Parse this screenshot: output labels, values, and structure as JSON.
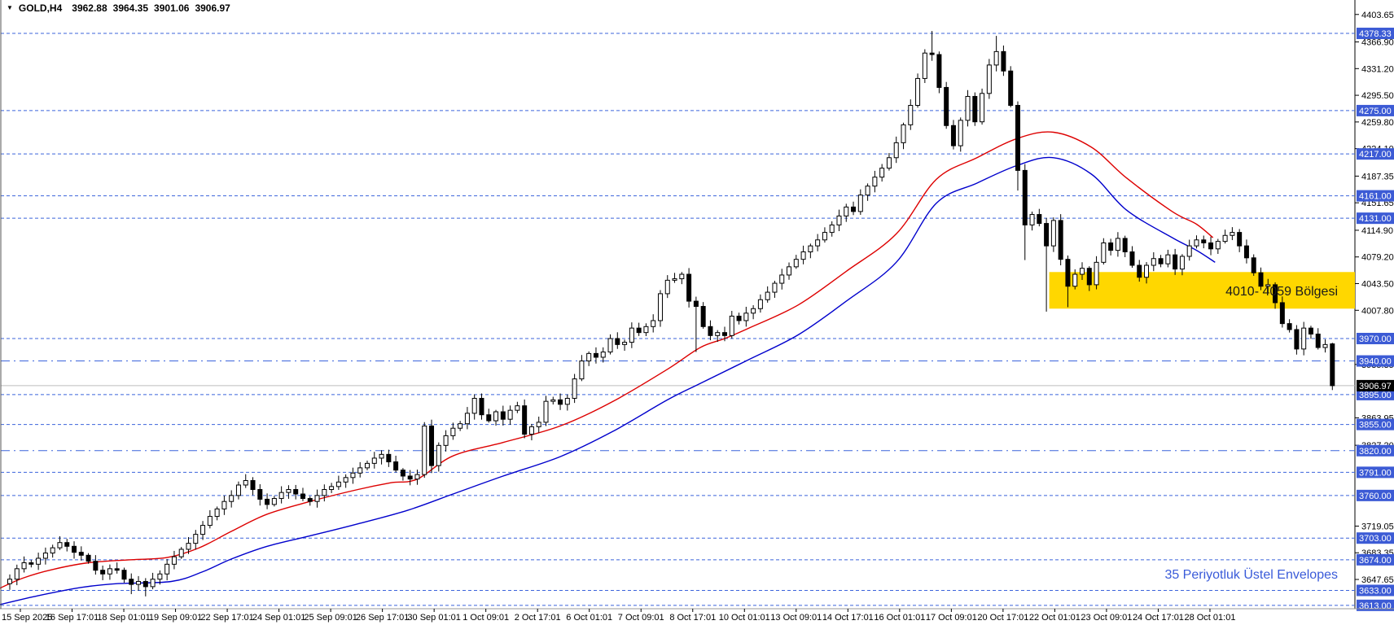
{
  "header": {
    "dropdown_icon": "▼",
    "symbol_period": "GOLD,H4",
    "open": "3962.88",
    "high": "3964.35",
    "low": "3901.06",
    "close": "3906.97"
  },
  "annotations": {
    "zone_label": "4010- 4059 Bölgesi",
    "note": "35 Periyotluk Üstel Envelopes"
  },
  "colors": {
    "level_blue": "#3B63DB",
    "label_bg": "#3C5BD5",
    "label_text": "#FFFFFF",
    "env_upper": "#DD0000",
    "env_lower": "#0000CC",
    "zone_fill": "#FFD700",
    "zone_text": "#1A1A1A",
    "note_text": "#3A5BD9",
    "current_line": "#BDBDBD",
    "current_label_bg": "#000000",
    "up_fill": "#FFFFFF",
    "down_fill": "#000000",
    "candle_stroke": "#000000",
    "axis_text": "#000000"
  },
  "chart_data": {
    "type": "candlestick",
    "title": "GOLD,H4 3962.88 3964.35 3901.06 3906.97",
    "symbol": "GOLD",
    "timeframe": "H4",
    "legend": [
      "35 Periyotluk Üstel Envelopes (upper band red, lower band blue)"
    ],
    "ylim": [
      3586.7,
      4423.0
    ],
    "grid": false,
    "price_ticks": [
      4403.65,
      4366.9,
      4331.2,
      4295.5,
      4259.8,
      4224.1,
      4187.35,
      4151.65,
      4114.9,
      4079.2,
      4043.5,
      4007.8,
      3935.35,
      3863.95,
      3827.2,
      3719.05,
      3683.35,
      3647.65
    ],
    "levels": [
      {
        "price": 4378.33,
        "style": "dash"
      },
      {
        "price": 4275.0,
        "style": "dash"
      },
      {
        "price": 4217.0,
        "style": "dash"
      },
      {
        "price": 4161.0,
        "style": "dash"
      },
      {
        "price": 4131.0,
        "style": "dash"
      },
      {
        "price": 3970.0,
        "style": "dash"
      },
      {
        "price": 3940.0,
        "style": "dashdot"
      },
      {
        "price": 3895.0,
        "style": "dash"
      },
      {
        "price": 3855.0,
        "style": "dash"
      },
      {
        "price": 3820.0,
        "style": "dashdot"
      },
      {
        "price": 3791.0,
        "style": "dash"
      },
      {
        "price": 3760.0,
        "style": "dash"
      },
      {
        "price": 3703.0,
        "style": "dash"
      },
      {
        "price": 3674.0,
        "style": "dash"
      },
      {
        "price": 3633.0,
        "style": "dash"
      },
      {
        "price": 3613.0,
        "style": "dash"
      }
    ],
    "current_price": 3906.97,
    "zone": {
      "top": 4059,
      "bottom": 4010,
      "start_index": 145.4,
      "label": "4010- 4059 Bölgesi"
    },
    "time_labels": [
      "15 Sep 2025",
      "16 Sep 17:01",
      "18 Sep 01:01",
      "19 Sep 09:01",
      "22 Sep 17:01",
      "24 Sep 01:01",
      "25 Sep 09:01",
      "26 Sep 17:01",
      "30 Sep 01:01",
      "1 Oct 09:01",
      "2 Oct 17:01",
      "6 Oct 01:01",
      "7 Oct 09:01",
      "8 Oct 17:01",
      "10 Oct 01:01",
      "13 Oct 09:01",
      "14 Oct 17:01",
      "16 Oct 01:01",
      "17 Oct 09:01",
      "20 Oct 17:01",
      "22 Oct 01:01",
      "23 Oct 09:01",
      "24 Oct 17:01",
      "28 Oct 01:01"
    ],
    "closes": [
      3648,
      3662,
      3670,
      3668,
      3676,
      3683,
      3690,
      3697,
      3692,
      3684,
      3680,
      3672,
      3660,
      3655,
      3662,
      3660,
      3648,
      3641,
      3645,
      3638,
      3648,
      3655,
      3668,
      3678,
      3688,
      3696,
      3708,
      3720,
      3732,
      3742,
      3752,
      3760,
      3774,
      3780,
      3768,
      3755,
      3748,
      3756,
      3764,
      3768,
      3762,
      3756,
      3752,
      3760,
      3768,
      3772,
      3778,
      3784,
      3790,
      3797,
      3803,
      3810,
      3815,
      3805,
      3794,
      3786,
      3782,
      3788,
      3853,
      3800,
      3827,
      3840,
      3850,
      3856,
      3870,
      3890,
      3868,
      3860,
      3872,
      3862,
      3874,
      3880,
      3842,
      3852,
      3858,
      3886,
      3888,
      3882,
      3890,
      3916,
      3940,
      3950,
      3945,
      3952,
      3970,
      3962,
      3965,
      3984,
      3978,
      3986,
      3994,
      4030,
      4048,
      4050,
      4056,
      4020,
      4013,
      3986,
      3974,
      3978,
      3974,
      4000,
      3994,
      4004,
      4010,
      4022,
      4032,
      4044,
      4055,
      4066,
      4076,
      4086,
      4094,
      4102,
      4112,
      4122,
      4134,
      4146,
      4140,
      4162,
      4174,
      4186,
      4198,
      4212,
      4232,
      4256,
      4282,
      4318,
      4352,
      4350,
      4306,
      4255,
      4228,
      4262,
      4294,
      4260,
      4298,
      4336,
      4354,
      4328,
      4282,
      4195,
      4122,
      4136,
      4124,
      4094,
      4128,
      4076,
      4040,
      4056,
      4064,
      4042,
      4072,
      4098,
      4088,
      4104,
      4086,
      4068,
      4052,
      4068,
      4077,
      4070,
      4082,
      4063,
      4080,
      4094,
      4102,
      4098,
      4090,
      4100,
      4108,
      4112,
      4094,
      4078,
      4058,
      4040,
      4042,
      4018,
      3990,
      3982,
      3956,
      3984,
      3976,
      3958,
      3962,
      3906.97
    ],
    "overrides": {
      "17": {
        "low": 3628
      },
      "19": {
        "low": 3625
      },
      "59": {
        "low": 3790
      },
      "96": {
        "low": 3952
      },
      "129": {
        "high": 4381.5
      },
      "138": {
        "high": 4375
      },
      "141": {
        "low": 4168
      },
      "142": {
        "low": 4075
      },
      "145": {
        "low": 4006
      },
      "148": {
        "low": 4012
      },
      "185": {
        "open": 3962.88,
        "high": 3964.35,
        "low": 3901.06,
        "close": 3906.97
      }
    },
    "envelope_upper": [
      [
        -1.4,
        3636
      ],
      [
        2,
        3650
      ],
      [
        6,
        3661
      ],
      [
        11,
        3670
      ],
      [
        17,
        3674
      ],
      [
        22,
        3677
      ],
      [
        26.5,
        3690
      ],
      [
        31,
        3712
      ],
      [
        36,
        3735
      ],
      [
        42,
        3752
      ],
      [
        48.7,
        3768
      ],
      [
        53.3,
        3777
      ],
      [
        57,
        3782
      ],
      [
        62,
        3813
      ],
      [
        69,
        3831
      ],
      [
        77,
        3853
      ],
      [
        84.4,
        3886
      ],
      [
        92,
        3929
      ],
      [
        96.6,
        3958
      ],
      [
        100,
        3970
      ],
      [
        103.4,
        3984
      ],
      [
        110.3,
        4015
      ],
      [
        117,
        4060
      ],
      [
        124,
        4110
      ],
      [
        129.6,
        4183
      ],
      [
        135.3,
        4212
      ],
      [
        141,
        4238
      ],
      [
        146,
        4246
      ],
      [
        151.3,
        4226
      ],
      [
        156.2,
        4185
      ],
      [
        162.6,
        4140
      ],
      [
        166,
        4123
      ],
      [
        168.3,
        4105
      ]
    ],
    "envelope_lower": [
      [
        -1.4,
        3614
      ],
      [
        4,
        3626
      ],
      [
        10,
        3637
      ],
      [
        15,
        3642
      ],
      [
        22.6,
        3645
      ],
      [
        27,
        3658
      ],
      [
        31,
        3675
      ],
      [
        36,
        3692
      ],
      [
        42,
        3706
      ],
      [
        48.7,
        3722
      ],
      [
        55.6,
        3740
      ],
      [
        62,
        3762
      ],
      [
        69,
        3786
      ],
      [
        77,
        3812
      ],
      [
        84.4,
        3846
      ],
      [
        92,
        3888
      ],
      [
        96.6,
        3910
      ],
      [
        103.4,
        3942
      ],
      [
        110.3,
        3975
      ],
      [
        117,
        4020
      ],
      [
        124,
        4072
      ],
      [
        129.6,
        4151
      ],
      [
        135.3,
        4178
      ],
      [
        141,
        4202
      ],
      [
        146,
        4212
      ],
      [
        151.3,
        4190
      ],
      [
        156.2,
        4142
      ],
      [
        162.6,
        4105
      ],
      [
        166,
        4088
      ],
      [
        168.6,
        4072
      ]
    ]
  }
}
